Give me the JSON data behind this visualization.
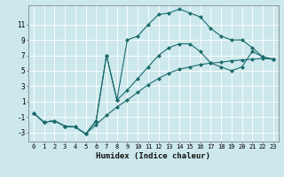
{
  "xlabel": "Humidex (Indice chaleur)",
  "bg_color": "#cce8ec",
  "line_color": "#1a6b6b",
  "grid_color": "#ffffff",
  "xlim": [
    -0.5,
    23.5
  ],
  "ylim": [
    -4.2,
    13.5
  ],
  "xticks": [
    0,
    1,
    2,
    3,
    4,
    5,
    6,
    7,
    8,
    9,
    10,
    11,
    12,
    13,
    14,
    15,
    16,
    17,
    18,
    19,
    20,
    21,
    22,
    23
  ],
  "yticks": [
    -3,
    -1,
    1,
    3,
    5,
    7,
    9,
    11
  ],
  "line1_x": [
    0,
    1,
    2,
    3,
    4,
    5,
    6,
    7,
    8,
    9,
    10,
    11,
    12,
    13,
    14,
    15,
    16,
    17,
    18,
    19,
    20,
    21,
    22,
    23
  ],
  "line1_y": [
    -0.5,
    -1.7,
    -1.5,
    -2.2,
    -2.3,
    -3.2,
    -2.0,
    -0.8,
    0.3,
    1.2,
    2.2,
    3.2,
    4.0,
    4.7,
    5.2,
    5.5,
    5.8,
    6.0,
    6.1,
    6.3,
    6.4,
    6.5,
    6.6,
    6.5
  ],
  "line2_x": [
    0,
    1,
    2,
    3,
    4,
    5,
    6,
    7,
    8,
    9,
    10,
    11,
    12,
    13,
    14,
    15,
    16,
    17,
    18,
    19,
    20,
    21,
    22,
    23
  ],
  "line2_y": [
    -0.5,
    -1.7,
    -1.5,
    -2.2,
    -2.3,
    -3.2,
    -1.5,
    7.0,
    1.2,
    2.5,
    4.0,
    5.5,
    7.0,
    8.0,
    8.5,
    8.5,
    7.5,
    6.0,
    5.5,
    5.0,
    5.5,
    7.5,
    6.8,
    6.5
  ],
  "line3_x": [
    0,
    1,
    2,
    3,
    4,
    5,
    6,
    7,
    8,
    9,
    10,
    11,
    12,
    13,
    14,
    15,
    16,
    17,
    18,
    19,
    20,
    21,
    22,
    23
  ],
  "line3_y": [
    -0.5,
    -1.7,
    -1.5,
    -2.2,
    -2.3,
    -3.2,
    -1.5,
    7.0,
    1.2,
    9.0,
    9.5,
    11.0,
    12.3,
    12.5,
    13.0,
    12.5,
    12.0,
    10.5,
    9.5,
    9.0,
    9.0,
    8.0,
    6.8,
    6.5
  ]
}
